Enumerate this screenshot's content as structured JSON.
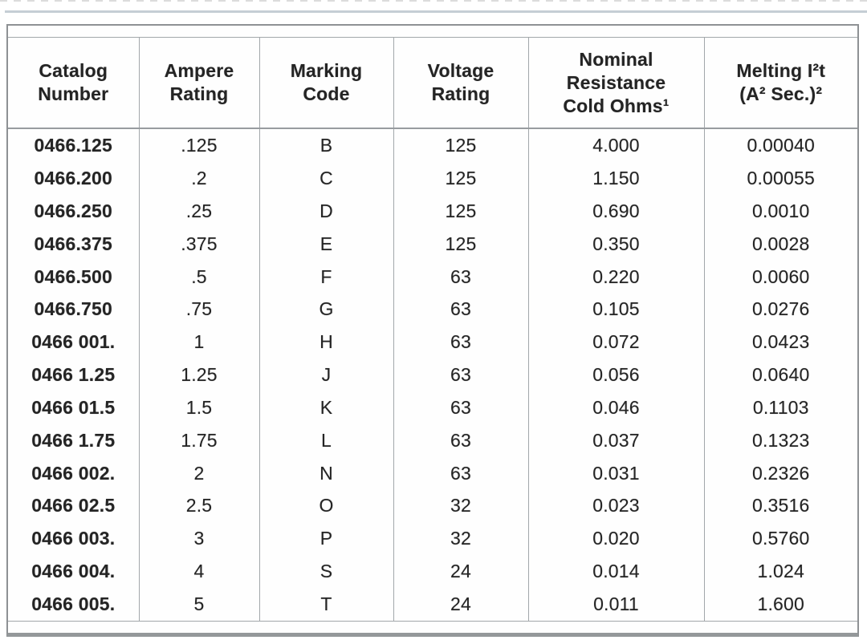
{
  "colors": {
    "text": "#242424",
    "frame_border": "#8e9194",
    "grid_line": "#a2a7aa",
    "header_underline": "#989c9f",
    "bottom_bar": "#94989a",
    "top_rule": "#c5ced5"
  },
  "table": {
    "columns": [
      {
        "key": "catalog",
        "lines": [
          "Catalog",
          "Number"
        ]
      },
      {
        "key": "ampere",
        "lines": [
          "Ampere",
          "Rating"
        ]
      },
      {
        "key": "marking",
        "lines": [
          "Marking",
          "Code"
        ]
      },
      {
        "key": "voltage",
        "lines": [
          "Voltage",
          "Rating"
        ]
      },
      {
        "key": "resistance",
        "lines": [
          "Nominal",
          "Resistance",
          "Cold Ohms¹"
        ]
      },
      {
        "key": "melting",
        "lines": [
          "Melting I²t",
          "(A² Sec.)²"
        ]
      }
    ],
    "rows": [
      [
        "0466.125",
        ".125",
        "B",
        "125",
        "4.000",
        "0.00040"
      ],
      [
        "0466.200",
        ".2",
        "C",
        "125",
        "1.150",
        "0.00055"
      ],
      [
        "0466.250",
        ".25",
        "D",
        "125",
        "0.690",
        "0.0010"
      ],
      [
        "0466.375",
        ".375",
        "E",
        "125",
        "0.350",
        "0.0028"
      ],
      [
        "0466.500",
        ".5",
        "F",
        "63",
        "0.220",
        "0.0060"
      ],
      [
        "0466.750",
        ".75",
        "G",
        "63",
        "0.105",
        "0.0276"
      ],
      [
        "0466 001.",
        "1",
        "H",
        "63",
        "0.072",
        "0.0423"
      ],
      [
        "0466 1.25",
        "1.25",
        "J",
        "63",
        "0.056",
        "0.0640"
      ],
      [
        "0466 01.5",
        "1.5",
        "K",
        "63",
        "0.046",
        "0.1103"
      ],
      [
        "0466 1.75",
        "1.75",
        "L",
        "63",
        "0.037",
        "0.1323"
      ],
      [
        "0466 002.",
        "2",
        "N",
        "63",
        "0.031",
        "0.2326"
      ],
      [
        "0466 02.5",
        "2.5",
        "O",
        "32",
        "0.023",
        "0.3516"
      ],
      [
        "0466 003.",
        "3",
        "P",
        "32",
        "0.020",
        "0.5760"
      ],
      [
        "0466 004.",
        "4",
        "S",
        "24",
        "0.014",
        "1.024"
      ],
      [
        "0466 005.",
        "5",
        "T",
        "24",
        "0.011",
        "1.600"
      ]
    ]
  }
}
